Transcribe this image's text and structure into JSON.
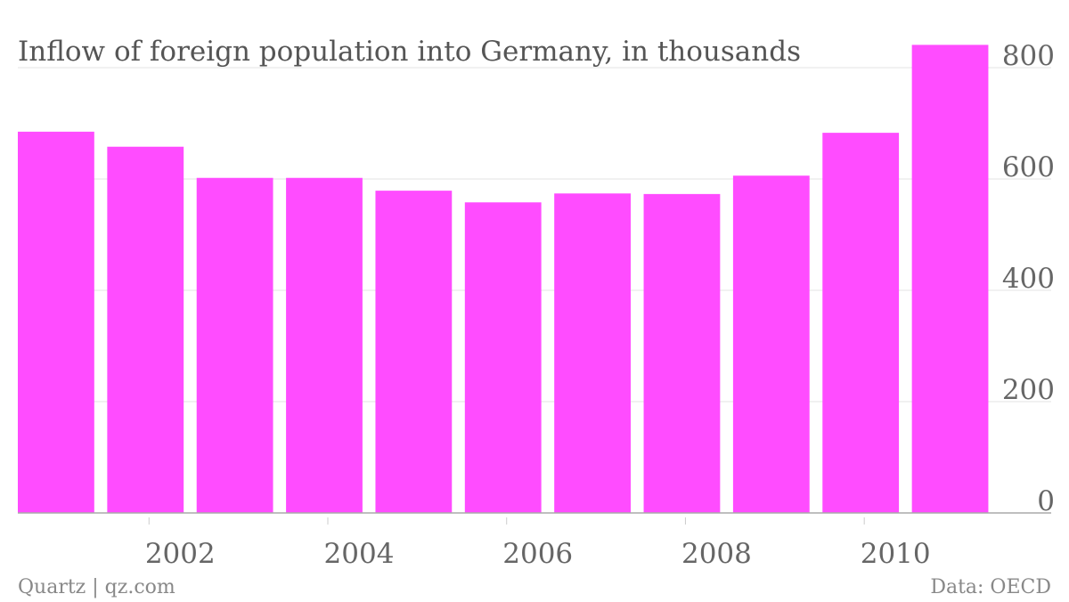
{
  "chart_data": {
    "type": "bar",
    "title": "Inflow of foreign population into Germany, in thousands",
    "x": [
      2001,
      2002,
      2003,
      2004,
      2005,
      2006,
      2007,
      2008,
      2009,
      2010,
      2011
    ],
    "values": [
      685,
      658,
      602,
      602,
      579,
      558,
      574,
      573,
      606,
      683,
      841
    ],
    "x_tick_labels": [
      "2002",
      "2004",
      "2006",
      "2008",
      "2010"
    ],
    "y_tick_labels": [
      "0",
      "200",
      "400",
      "600",
      "800"
    ],
    "ylim": [
      0,
      800
    ],
    "y_axis_side": "right",
    "grid": true,
    "bar_color": "#ff4cff",
    "source_left": "Quartz | qz.com",
    "source_right": "Data: OECD"
  }
}
